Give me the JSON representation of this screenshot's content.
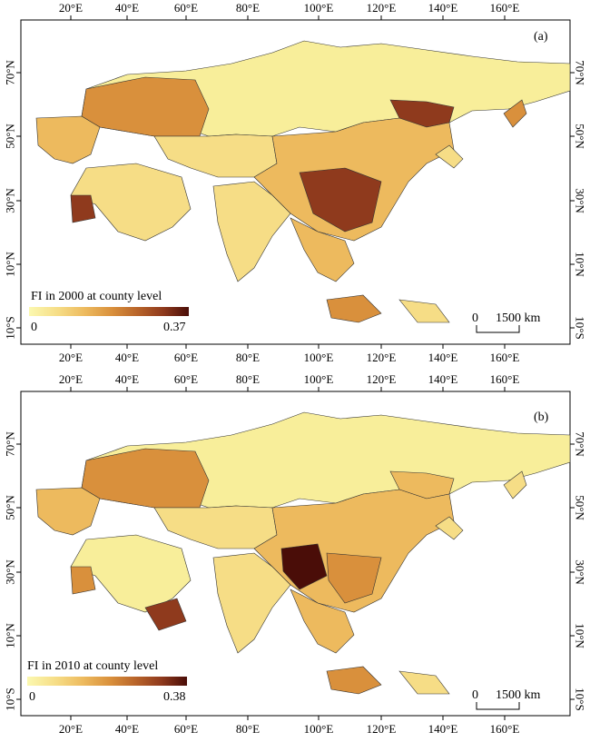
{
  "longitude_ticks": [
    "20°E",
    "40°E",
    "60°E",
    "80°E",
    "100°E",
    "120°E",
    "140°E",
    "160°E"
  ],
  "latitude_ticks": [
    "70°N",
    "50°N",
    "30°N",
    "10°N",
    "10°S"
  ],
  "panels": [
    {
      "id": "a",
      "letter": "(a)",
      "legend": {
        "title": "FI in 2000 at county level",
        "min": "0",
        "max": "0.37"
      },
      "scale_bar": {
        "zero": "0",
        "distance": "1500 km"
      }
    },
    {
      "id": "b",
      "letter": "(b)",
      "legend": {
        "title": "FI in 2010 at county level",
        "min": "0",
        "max": "0.38"
      },
      "scale_bar": {
        "zero": "0",
        "distance": "1500 km"
      }
    }
  ],
  "colors": {
    "low": "#fbf8b0",
    "mid_low": "#f6dd86",
    "mid": "#edba5e",
    "mid_high": "#d9903c",
    "high": "#b8642a",
    "very_high": "#8f3a1d",
    "max": "#4a0d08",
    "border": "#333333"
  }
}
